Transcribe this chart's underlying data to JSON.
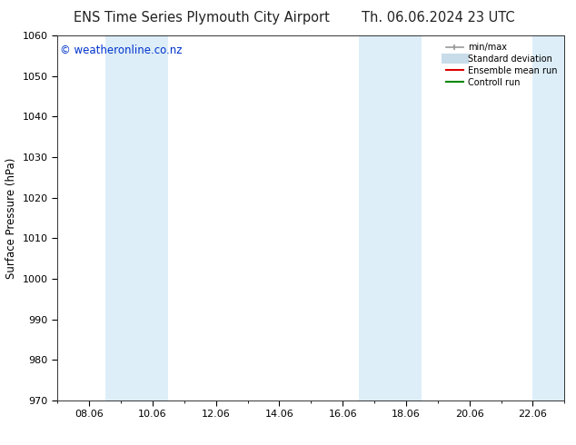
{
  "title_left": "ENS Time Series Plymouth City Airport",
  "title_right": "Th. 06.06.2024 23 UTC",
  "ylabel": "Surface Pressure (hPa)",
  "xlabel": "",
  "watermark": "© weatheronline.co.nz",
  "ylim": [
    970,
    1060
  ],
  "yticks": [
    970,
    980,
    990,
    1000,
    1010,
    1020,
    1030,
    1040,
    1050,
    1060
  ],
  "xtick_labels": [
    "08.06",
    "10.06",
    "12.06",
    "14.06",
    "16.06",
    "18.06",
    "20.06",
    "22.06"
  ],
  "xtick_positions": [
    1,
    3,
    5,
    7,
    9,
    11,
    13,
    15
  ],
  "xmin": 0,
  "xmax": 16,
  "shaded_bands": [
    {
      "x_start": 1.5,
      "x_end": 3.5
    },
    {
      "x_start": 9.5,
      "x_end": 11.5
    },
    {
      "x_start": 15.0,
      "x_end": 16.0
    }
  ],
  "band_color": "#ddeef8",
  "background_color": "#ffffff",
  "legend_entries": [
    {
      "label": "min/max",
      "color": "#999999",
      "lw": 1.2,
      "style": "errorbar"
    },
    {
      "label": "Standard deviation",
      "color": "#c8dcea",
      "lw": 8,
      "style": "line"
    },
    {
      "label": "Ensemble mean run",
      "color": "#dd0000",
      "lw": 1.5,
      "style": "line"
    },
    {
      "label": "Controll run",
      "color": "#008800",
      "lw": 1.5,
      "style": "line"
    }
  ],
  "title_fontsize": 10.5,
  "watermark_color": "#0033cc",
  "watermark_fontsize": 8.5,
  "axis_label_fontsize": 8.5,
  "tick_fontsize": 8
}
